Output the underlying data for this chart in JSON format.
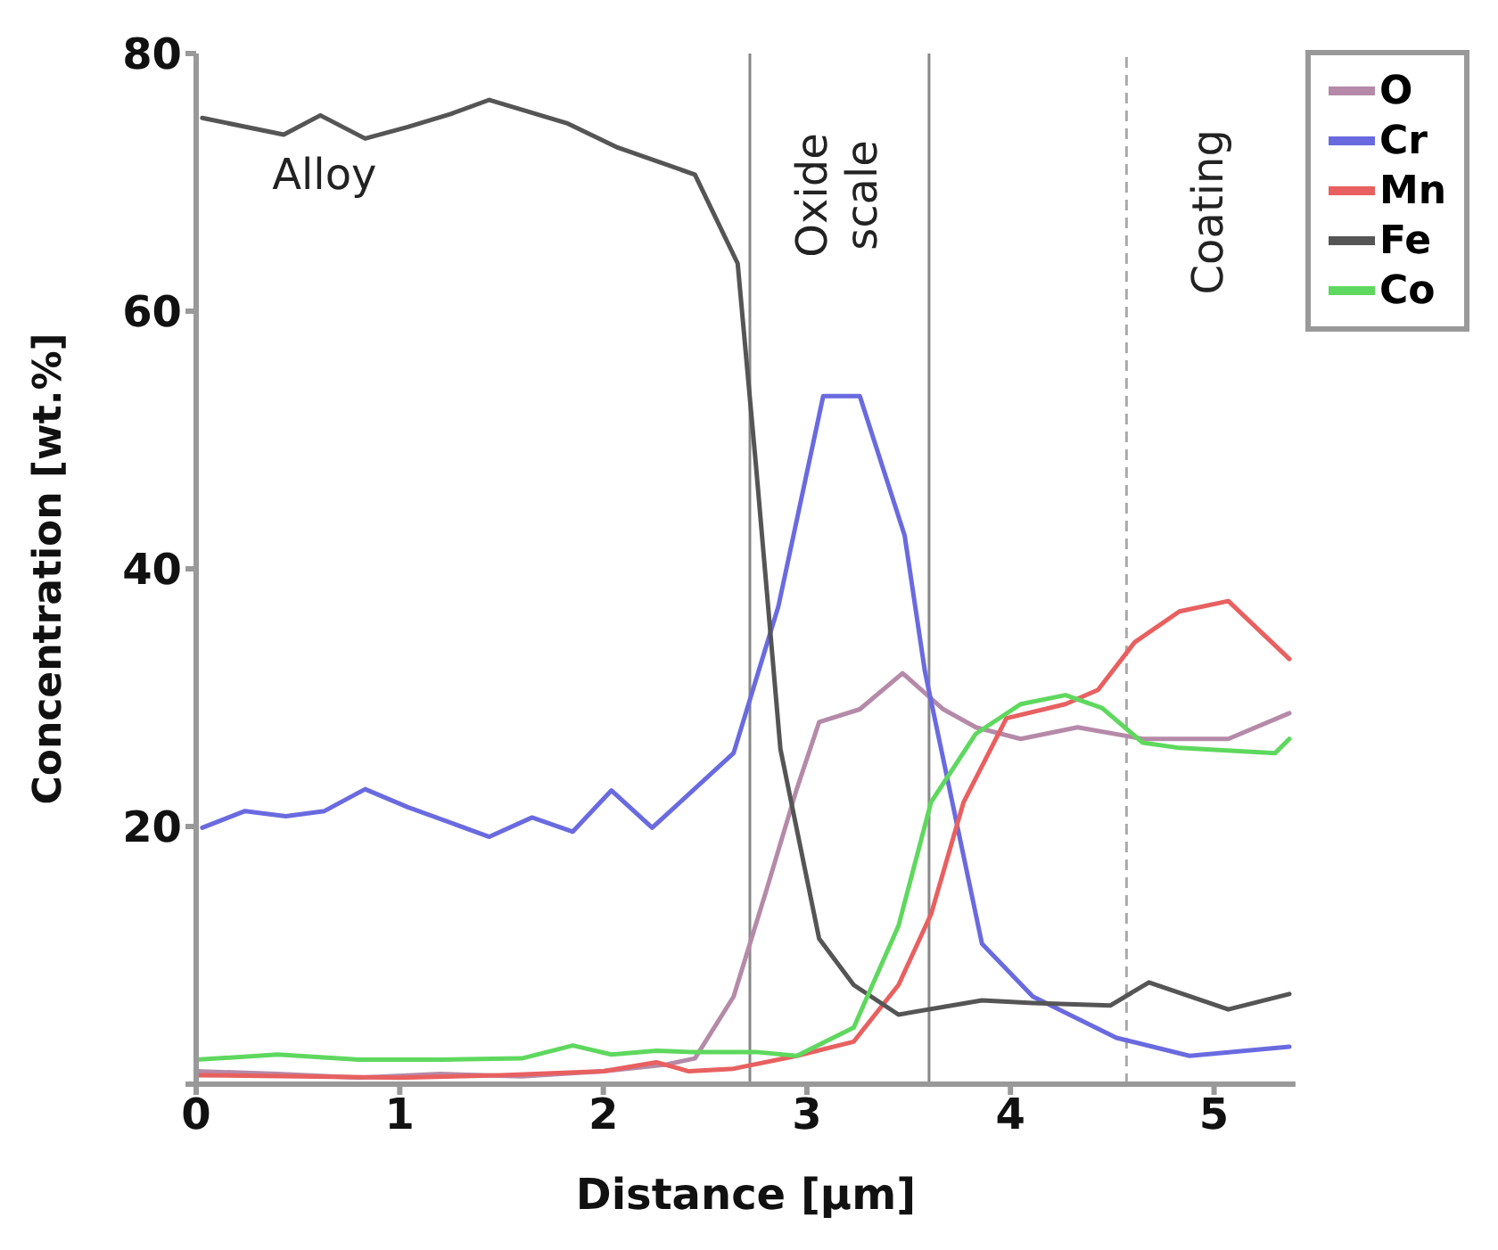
{
  "chart_data": {
    "type": "line",
    "xlabel": "Distance [µm]",
    "ylabel": "Concentration [wt.%]",
    "xlim": [
      0,
      5.4
    ],
    "xticks": [
      0,
      1,
      2,
      3,
      4,
      5
    ],
    "ylim": [
      0,
      80
    ],
    "yticks": [
      {
        "value": 0,
        "label": null
      },
      20,
      40,
      60,
      80
    ],
    "legend": "right",
    "marker": "none",
    "line_style": "solid",
    "series": [
      {
        "name": "O",
        "color": "#b58aa8",
        "x": [
          0,
          0.4,
          0.8,
          1.2,
          1.6,
          2.0,
          2.3,
          2.45,
          2.64,
          2.8,
          2.95,
          3.06,
          3.26,
          3.47,
          3.67,
          3.83,
          4.05,
          4.33,
          4.65,
          5.07,
          5.37
        ],
        "values": [
          1,
          0.8,
          0.5,
          0.8,
          0.6,
          1,
          1.5,
          2,
          6.8,
          15,
          22.9,
          28.1,
          29.1,
          31.9,
          29.1,
          27.7,
          26.8,
          27.7,
          26.8,
          26.8,
          28.8
        ]
      },
      {
        "name": "Cr",
        "color": "#6a6ae0",
        "x": [
          0.03,
          0.24,
          0.44,
          0.63,
          0.83,
          1.04,
          1.44,
          1.65,
          1.85,
          2.04,
          2.24,
          2.64,
          2.86,
          3.08,
          3.26,
          3.48,
          3.58,
          3.86,
          4.11,
          4.52,
          4.88,
          5.37
        ],
        "values": [
          19.9,
          21.2,
          20.8,
          21.2,
          22.9,
          21.5,
          19.2,
          20.7,
          19.6,
          22.8,
          19.9,
          25.7,
          37.1,
          53.4,
          53.4,
          42.6,
          32,
          10.9,
          6.8,
          3.6,
          2.2,
          2.9
        ]
      },
      {
        "name": "Mn",
        "color": "#e86060",
        "x": [
          0,
          0.5,
          1.0,
          1.5,
          2.0,
          2.26,
          2.42,
          2.64,
          2.95,
          3.23,
          3.45,
          3.61,
          3.77,
          3.98,
          4.27,
          4.43,
          4.61,
          4.83,
          5.07,
          5.37
        ],
        "values": [
          0.7,
          0.6,
          0.5,
          0.7,
          1,
          1.7,
          1,
          1.2,
          2.2,
          3.3,
          7.7,
          13.2,
          21.9,
          28.4,
          29.5,
          30.6,
          34.3,
          36.7,
          37.5,
          33
        ]
      },
      {
        "name": "Fe",
        "color": "#555555",
        "x": [
          0.03,
          0.43,
          0.61,
          0.83,
          1.04,
          1.25,
          1.44,
          1.82,
          2.07,
          2.45,
          2.66,
          2.75,
          2.87,
          3.06,
          3.23,
          3.45,
          3.86,
          4.11,
          4.49,
          4.68,
          5.07,
          5.37
        ],
        "values": [
          75,
          73.7,
          75.2,
          73.4,
          74.3,
          75.3,
          76.4,
          74.6,
          72.7,
          70.6,
          63.7,
          48,
          26,
          11.3,
          7.7,
          5.4,
          6.5,
          6.3,
          6.1,
          7.9,
          5.8,
          7
        ]
      },
      {
        "name": "Co",
        "color": "#5ed85e",
        "x": [
          0,
          0.4,
          0.8,
          1.2,
          1.6,
          1.85,
          2.04,
          2.26,
          2.42,
          2.75,
          2.95,
          3.23,
          3.45,
          3.61,
          3.83,
          4.05,
          4.27,
          4.45,
          4.65,
          4.83,
          5.3,
          5.37
        ],
        "values": [
          1.9,
          2.3,
          1.9,
          1.9,
          2,
          3,
          2.3,
          2.6,
          2.5,
          2.5,
          2.2,
          4.4,
          12.3,
          21.9,
          27.2,
          29.5,
          30.2,
          29.2,
          26.5,
          26.1,
          25.7,
          26.8
        ]
      }
    ],
    "ref_lines": [
      {
        "axis": "x",
        "value": 2.72,
        "color": "#888888",
        "line_style": "solid"
      },
      {
        "axis": "x",
        "value": 3.6,
        "color": "#888888",
        "line_style": "solid"
      },
      {
        "axis": "x",
        "value": 4.57,
        "color": "#aaaaaa",
        "line_style": "dashed"
      }
    ],
    "annotations": [
      "Alloy",
      "Oxide scale",
      "Coating"
    ]
  }
}
